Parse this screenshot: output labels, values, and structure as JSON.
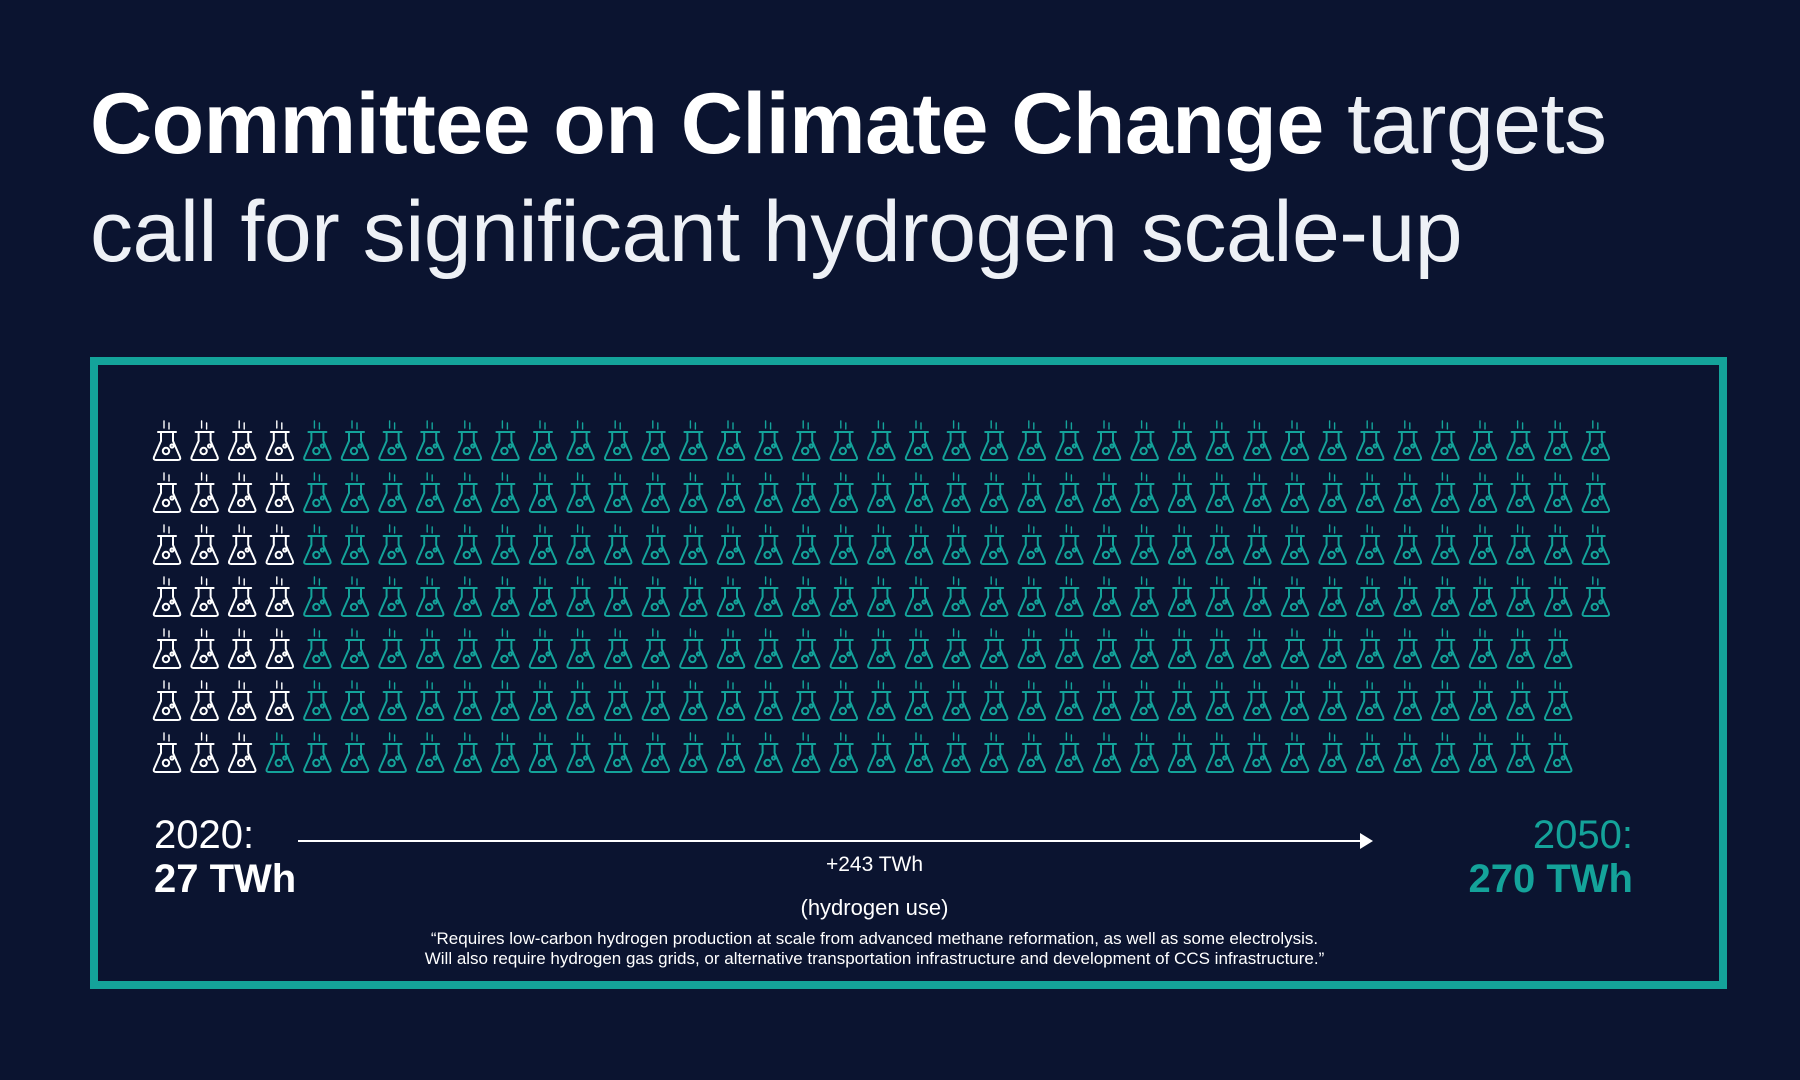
{
  "title": {
    "bold": "Committee on Climate Change",
    "light": "targets call for significant hydrogen scale-up"
  },
  "colors": {
    "background": "#0b1430",
    "accent": "#14a39a",
    "highlight": "#ffffff"
  },
  "icon": "flask-icon",
  "chart_data": {
    "type": "pictogram",
    "total_icons": 270,
    "highlighted_icons": 27,
    "rows": 7,
    "columns": 40,
    "start": {
      "year": "2020:",
      "value": "27 TWh"
    },
    "end": {
      "year": "2050:",
      "value": "270 TWh"
    },
    "change": {
      "value": "+243 TWh",
      "label": "(hydrogen use)"
    }
  },
  "quote": {
    "line1": "“Requires low-carbon hydrogen production at scale from advanced methane reformation, as well as some electrolysis.",
    "line2": "Will also require hydrogen gas grids, or alternative transportation infrastructure and development of CCS infrastructure.”"
  }
}
